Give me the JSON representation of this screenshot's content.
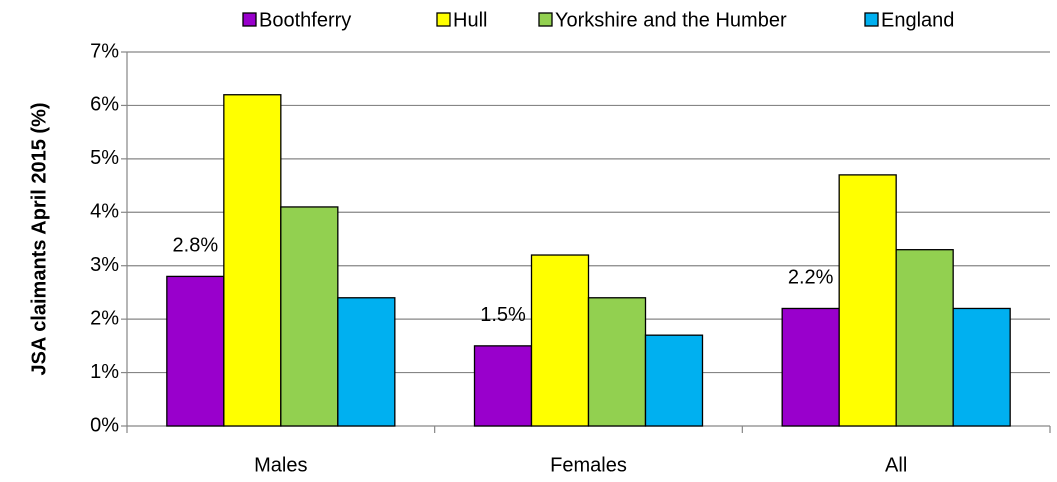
{
  "chart_data": {
    "type": "bar",
    "y_label": "JSA claimants April 2015 (%)",
    "categories": [
      "Males",
      "Females",
      "All"
    ],
    "series": [
      {
        "name": "Boothferry",
        "color": "#9900cc",
        "values": [
          2.8,
          1.5,
          2.2
        ],
        "value_labels": [
          "2.8%",
          "1.5%",
          "2.2%"
        ]
      },
      {
        "name": "Hull",
        "color": "#ffff00",
        "values": [
          6.2,
          3.2,
          4.7
        ]
      },
      {
        "name": "Yorkshire and the Humber",
        "color": "#92d050",
        "values": [
          4.1,
          2.4,
          3.3
        ]
      },
      {
        "name": "England",
        "color": "#00b0f0",
        "values": [
          2.4,
          1.7,
          2.2
        ]
      }
    ],
    "ylim": [
      0,
      7
    ],
    "yticks": [
      {
        "value": 0,
        "label": "0%"
      },
      {
        "value": 1,
        "label": "1%"
      },
      {
        "value": 2,
        "label": "2%"
      },
      {
        "value": 3,
        "label": "3%"
      },
      {
        "value": 4,
        "label": "4%"
      },
      {
        "value": 5,
        "label": "5%"
      },
      {
        "value": 6,
        "label": "6%"
      },
      {
        "value": 7,
        "label": "7%"
      }
    ],
    "grid": true,
    "legend": "top"
  }
}
